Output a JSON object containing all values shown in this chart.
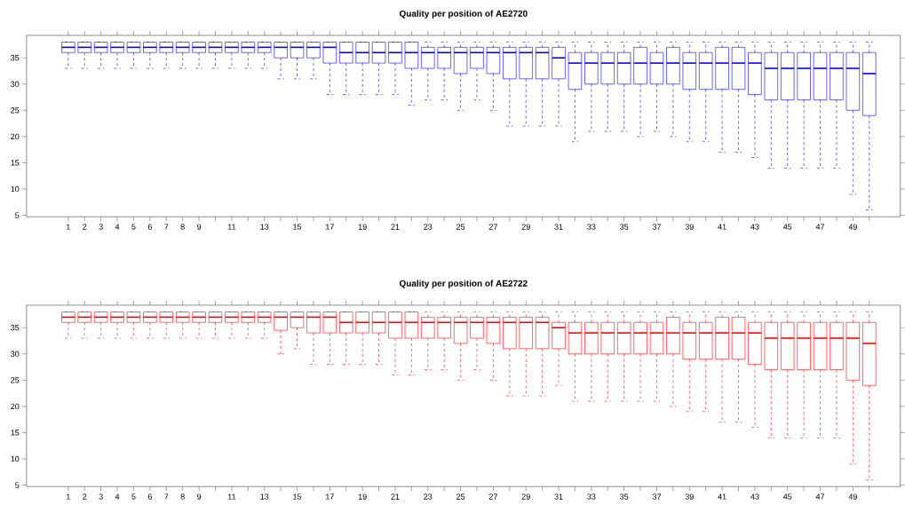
{
  "chart_data": [
    {
      "type": "box",
      "title": "Quality per position of AE2720",
      "categories": [
        "1",
        "2",
        "3",
        "4",
        "5",
        "6",
        "7",
        "8",
        "9",
        null,
        "11",
        null,
        "13",
        null,
        "15",
        null,
        "17",
        null,
        "19",
        null,
        "21",
        null,
        "23",
        null,
        "25",
        null,
        "27",
        null,
        "29",
        null,
        "31",
        null,
        "33",
        null,
        "35",
        null,
        "37",
        null,
        "39",
        null,
        "41",
        null,
        "43",
        null,
        "45",
        null,
        "47",
        null,
        "49",
        null
      ],
      "ylim": [
        4.72,
        39.28
      ],
      "yticks": [
        5,
        10,
        15,
        20,
        25,
        30,
        35
      ],
      "series": [
        {
          "color": "#0000ff",
          "boxes": [
            {
              "low": 33,
              "q1": 36,
              "median": 37,
              "q3": 38,
              "high": 38
            },
            {
              "low": 33,
              "q1": 36,
              "median": 37,
              "q3": 38,
              "high": 38
            },
            {
              "low": 33,
              "q1": 36,
              "median": 37,
              "q3": 38,
              "high": 38
            },
            {
              "low": 33,
              "q1": 36,
              "median": 37,
              "q3": 38,
              "high": 38
            },
            {
              "low": 33,
              "q1": 36,
              "median": 37,
              "q3": 38,
              "high": 38
            },
            {
              "low": 33,
              "q1": 36,
              "median": 37,
              "q3": 38,
              "high": 38
            },
            {
              "low": 33,
              "q1": 36,
              "median": 37,
              "q3": 38,
              "high": 38
            },
            {
              "low": 33,
              "q1": 36,
              "median": 37,
              "q3": 38,
              "high": 38
            },
            {
              "low": 33,
              "q1": 36,
              "median": 37,
              "q3": 38,
              "high": 38
            },
            {
              "low": 33,
              "q1": 36,
              "median": 37,
              "q3": 38,
              "high": 38
            },
            {
              "low": 33,
              "q1": 36,
              "median": 37,
              "q3": 38,
              "high": 38
            },
            {
              "low": 33,
              "q1": 36,
              "median": 37,
              "q3": 38,
              "high": 38
            },
            {
              "low": 33,
              "q1": 36,
              "median": 37,
              "q3": 38,
              "high": 38
            },
            {
              "low": 31,
              "q1": 35,
              "median": 37,
              "q3": 38,
              "high": 38
            },
            {
              "low": 31,
              "q1": 35,
              "median": 37,
              "q3": 38,
              "high": 38
            },
            {
              "low": 31,
              "q1": 35,
              "median": 37,
              "q3": 38,
              "high": 38
            },
            {
              "low": 28,
              "q1": 34,
              "median": 37,
              "q3": 38,
              "high": 38
            },
            {
              "low": 28,
              "q1": 34,
              "median": 36,
              "q3": 38,
              "high": 38
            },
            {
              "low": 28,
              "q1": 34,
              "median": 36,
              "q3": 38,
              "high": 38
            },
            {
              "low": 28,
              "q1": 34,
              "median": 36,
              "q3": 38,
              "high": 38
            },
            {
              "low": 28,
              "q1": 34,
              "median": 36,
              "q3": 38,
              "high": 38
            },
            {
              "low": 26,
              "q1": 33,
              "median": 36,
              "q3": 38,
              "high": 38
            },
            {
              "low": 27,
              "q1": 33,
              "median": 36,
              "q3": 37,
              "high": 38
            },
            {
              "low": 27,
              "q1": 33,
              "median": 36,
              "q3": 37,
              "high": 38
            },
            {
              "low": 25,
              "q1": 32,
              "median": 36,
              "q3": 37,
              "high": 38
            },
            {
              "low": 27,
              "q1": 33,
              "median": 36,
              "q3": 37,
              "high": 38
            },
            {
              "low": 25,
              "q1": 32,
              "median": 36,
              "q3": 37,
              "high": 38
            },
            {
              "low": 22,
              "q1": 31,
              "median": 36,
              "q3": 37,
              "high": 38
            },
            {
              "low": 22,
              "q1": 31,
              "median": 36,
              "q3": 37,
              "high": 38
            },
            {
              "low": 22,
              "q1": 31,
              "median": 36,
              "q3": 37,
              "high": 38
            },
            {
              "low": 22,
              "q1": 31,
              "median": 35,
              "q3": 37,
              "high": 38
            },
            {
              "low": 19,
              "q1": 29,
              "median": 34,
              "q3": 36,
              "high": 38
            },
            {
              "low": 21,
              "q1": 30,
              "median": 34,
              "q3": 36,
              "high": 38
            },
            {
              "low": 21,
              "q1": 30,
              "median": 34,
              "q3": 36,
              "high": 38
            },
            {
              "low": 21,
              "q1": 30,
              "median": 34,
              "q3": 36,
              "high": 38
            },
            {
              "low": 20,
              "q1": 30,
              "median": 34,
              "q3": 37,
              "high": 38
            },
            {
              "low": 21,
              "q1": 30,
              "median": 34,
              "q3": 36,
              "high": 38
            },
            {
              "low": 20,
              "q1": 30,
              "median": 34,
              "q3": 37,
              "high": 38
            },
            {
              "low": 19,
              "q1": 29,
              "median": 34,
              "q3": 36,
              "high": 38
            },
            {
              "low": 19,
              "q1": 29,
              "median": 34,
              "q3": 36,
              "high": 38
            },
            {
              "low": 17,
              "q1": 29,
              "median": 34,
              "q3": 37,
              "high": 38
            },
            {
              "low": 17,
              "q1": 29,
              "median": 34,
              "q3": 37,
              "high": 38
            },
            {
              "low": 16,
              "q1": 28,
              "median": 34,
              "q3": 36,
              "high": 38
            },
            {
              "low": 14,
              "q1": 27,
              "median": 33,
              "q3": 36,
              "high": 38
            },
            {
              "low": 14,
              "q1": 27,
              "median": 33,
              "q3": 36,
              "high": 38
            },
            {
              "low": 14,
              "q1": 27,
              "median": 33,
              "q3": 36,
              "high": 38
            },
            {
              "low": 14,
              "q1": 27,
              "median": 33,
              "q3": 36,
              "high": 38
            },
            {
              "low": 14,
              "q1": 27,
              "median": 33,
              "q3": 36,
              "high": 38
            },
            {
              "low": 9,
              "q1": 25,
              "median": 33,
              "q3": 36,
              "high": 38
            },
            {
              "low": 6,
              "q1": 24,
              "median": 32,
              "q3": 36,
              "high": 38
            }
          ]
        }
      ]
    },
    {
      "type": "box",
      "title": "Quality per position of AE2722",
      "categories": [
        "1",
        "2",
        "3",
        "4",
        "5",
        "6",
        "7",
        "8",
        "9",
        null,
        "11",
        null,
        "13",
        null,
        "15",
        null,
        "17",
        null,
        "19",
        null,
        "21",
        null,
        "23",
        null,
        "25",
        null,
        "27",
        null,
        "29",
        null,
        "31",
        null,
        "33",
        null,
        "35",
        null,
        "37",
        null,
        "39",
        null,
        "41",
        null,
        "43",
        null,
        "45",
        null,
        "47",
        null,
        "49",
        null
      ],
      "ylim": [
        4.72,
        39.28
      ],
      "yticks": [
        5,
        10,
        15,
        20,
        25,
        30,
        35
      ],
      "series": [
        {
          "color": "#ff0000",
          "boxes": [
            {
              "low": 33,
              "q1": 36,
              "median": 37,
              "q3": 38,
              "high": 38
            },
            {
              "low": 33,
              "q1": 36,
              "median": 37,
              "q3": 38,
              "high": 38
            },
            {
              "low": 33,
              "q1": 36,
              "median": 37,
              "q3": 38,
              "high": 38
            },
            {
              "low": 33,
              "q1": 36,
              "median": 37,
              "q3": 38,
              "high": 38
            },
            {
              "low": 33,
              "q1": 36,
              "median": 37,
              "q3": 38,
              "high": 38
            },
            {
              "low": 33,
              "q1": 36,
              "median": 37,
              "q3": 38,
              "high": 38
            },
            {
              "low": 33,
              "q1": 36,
              "median": 37,
              "q3": 38,
              "high": 38
            },
            {
              "low": 33,
              "q1": 36,
              "median": 37,
              "q3": 38,
              "high": 38
            },
            {
              "low": 33,
              "q1": 36,
              "median": 37,
              "q3": 38,
              "high": 38
            },
            {
              "low": 33,
              "q1": 36,
              "median": 37,
              "q3": 38,
              "high": 38
            },
            {
              "low": 33,
              "q1": 36,
              "median": 37,
              "q3": 38,
              "high": 38
            },
            {
              "low": 33,
              "q1": 36,
              "median": 37,
              "q3": 38,
              "high": 38
            },
            {
              "low": 33,
              "q1": 36,
              "median": 37,
              "q3": 38,
              "high": 38
            },
            {
              "low": 30,
              "q1": 34.5,
              "median": 37,
              "q3": 38,
              "high": 38
            },
            {
              "low": 31,
              "q1": 35,
              "median": 37,
              "q3": 38,
              "high": 38
            },
            {
              "low": 28,
              "q1": 34,
              "median": 37,
              "q3": 38,
              "high": 38
            },
            {
              "low": 28,
              "q1": 34,
              "median": 37,
              "q3": 38,
              "high": 38
            },
            {
              "low": 28,
              "q1": 34,
              "median": 36,
              "q3": 38,
              "high": 38
            },
            {
              "low": 28,
              "q1": 34,
              "median": 36,
              "q3": 38,
              "high": 38
            },
            {
              "low": 28,
              "q1": 34,
              "median": 36,
              "q3": 38,
              "high": 38
            },
            {
              "low": 26,
              "q1": 33,
              "median": 36,
              "q3": 38,
              "high": 38
            },
            {
              "low": 26,
              "q1": 33,
              "median": 36,
              "q3": 38,
              "high": 38
            },
            {
              "low": 27,
              "q1": 33,
              "median": 36,
              "q3": 37,
              "high": 38
            },
            {
              "low": 27,
              "q1": 33,
              "median": 36,
              "q3": 37,
              "high": 38
            },
            {
              "low": 25,
              "q1": 32,
              "median": 36,
              "q3": 37,
              "high": 38
            },
            {
              "low": 27,
              "q1": 33,
              "median": 36,
              "q3": 37,
              "high": 38
            },
            {
              "low": 25,
              "q1": 32,
              "median": 36,
              "q3": 37,
              "high": 38
            },
            {
              "low": 22,
              "q1": 31,
              "median": 36,
              "q3": 37,
              "high": 38
            },
            {
              "low": 22,
              "q1": 31,
              "median": 36,
              "q3": 37,
              "high": 38
            },
            {
              "low": 22,
              "q1": 31,
              "median": 36,
              "q3": 37,
              "high": 38
            },
            {
              "low": 24,
              "q1": 31,
              "median": 35,
              "q3": 36,
              "high": 38
            },
            {
              "low": 21,
              "q1": 30,
              "median": 34,
              "q3": 36,
              "high": 38
            },
            {
              "low": 21,
              "q1": 30,
              "median": 34,
              "q3": 36,
              "high": 38
            },
            {
              "low": 21,
              "q1": 30,
              "median": 34,
              "q3": 36,
              "high": 38
            },
            {
              "low": 21,
              "q1": 30,
              "median": 34,
              "q3": 36,
              "high": 38
            },
            {
              "low": 21,
              "q1": 30,
              "median": 34,
              "q3": 36,
              "high": 38
            },
            {
              "low": 21,
              "q1": 30,
              "median": 34,
              "q3": 36,
              "high": 38
            },
            {
              "low": 20,
              "q1": 30,
              "median": 34,
              "q3": 37,
              "high": 38
            },
            {
              "low": 19,
              "q1": 29,
              "median": 34,
              "q3": 36,
              "high": 38
            },
            {
              "low": 19,
              "q1": 29,
              "median": 34,
              "q3": 36,
              "high": 38
            },
            {
              "low": 17,
              "q1": 29,
              "median": 34,
              "q3": 37,
              "high": 38
            },
            {
              "low": 17,
              "q1": 29,
              "median": 34,
              "q3": 37,
              "high": 38
            },
            {
              "low": 16,
              "q1": 28,
              "median": 34,
              "q3": 36,
              "high": 38
            },
            {
              "low": 14,
              "q1": 27,
              "median": 33,
              "q3": 36,
              "high": 38
            },
            {
              "low": 14,
              "q1": 27,
              "median": 33,
              "q3": 36,
              "high": 38
            },
            {
              "low": 14,
              "q1": 27,
              "median": 33,
              "q3": 36,
              "high": 38
            },
            {
              "low": 14,
              "q1": 27,
              "median": 33,
              "q3": 36,
              "high": 38
            },
            {
              "low": 14,
              "q1": 27,
              "median": 33,
              "q3": 36,
              "high": 38
            },
            {
              "low": 9,
              "q1": 25,
              "median": 33,
              "q3": 36,
              "high": 38
            },
            {
              "low": 6,
              "q1": 24,
              "median": 32,
              "q3": 36,
              "high": 38
            }
          ]
        }
      ]
    }
  ]
}
